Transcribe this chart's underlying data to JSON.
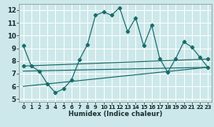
{
  "xlabel": "Humidex (Indice chaleur)",
  "ylabel": "",
  "bg_color": "#cde8ea",
  "grid_color": "#ffffff",
  "line_color": "#1a6b6b",
  "xlim": [
    -0.5,
    23.5
  ],
  "ylim": [
    4.8,
    12.5
  ],
  "xticks": [
    0,
    1,
    2,
    3,
    4,
    5,
    6,
    7,
    8,
    9,
    10,
    11,
    12,
    13,
    14,
    15,
    16,
    17,
    18,
    19,
    20,
    21,
    22,
    23
  ],
  "yticks": [
    5,
    6,
    7,
    8,
    9,
    10,
    11,
    12
  ],
  "series": [
    {
      "x": [
        0,
        1,
        2,
        3,
        4,
        5,
        6,
        7,
        8,
        9,
        10,
        11,
        12,
        13,
        14,
        15,
        16,
        17,
        18,
        19,
        20,
        21,
        22,
        23
      ],
      "y": [
        9.2,
        7.6,
        7.2,
        6.2,
        5.5,
        5.8,
        6.5,
        8.1,
        9.3,
        11.6,
        11.85,
        11.6,
        12.2,
        10.3,
        11.4,
        9.2,
        10.8,
        8.2,
        7.1,
        8.2,
        9.5,
        9.1,
        8.3,
        7.5
      ],
      "has_markers": true
    },
    {
      "x": [
        0,
        23
      ],
      "y": [
        7.6,
        8.15
      ],
      "has_markers": true
    },
    {
      "x": [
        0,
        23
      ],
      "y": [
        7.2,
        7.5
      ],
      "has_markers": false
    },
    {
      "x": [
        0,
        23
      ],
      "y": [
        6.0,
        7.5
      ],
      "has_markers": false
    }
  ]
}
